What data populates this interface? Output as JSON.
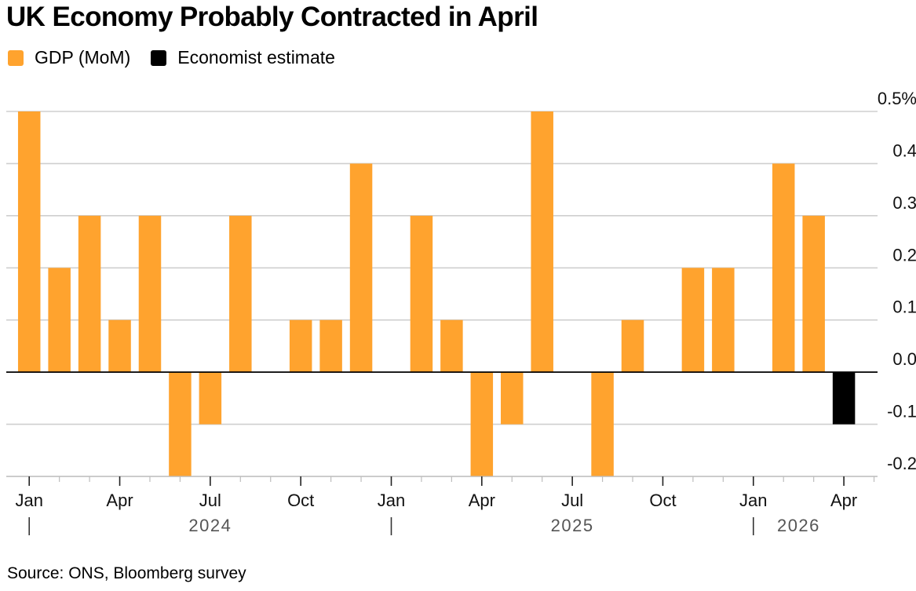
{
  "title": "UK Economy Probably Contracted in April",
  "legend": [
    {
      "label": "GDP (MoM)",
      "color": "#ffa32e"
    },
    {
      "label": "Economist estimate",
      "color": "#000000"
    }
  ],
  "source": "Source: ONS, Bloomberg survey",
  "chart_data": {
    "type": "bar",
    "categories": [
      "2024-01",
      "2024-02",
      "2024-03",
      "2024-04",
      "2024-05",
      "2024-06",
      "2024-07",
      "2024-08",
      "2024-09",
      "2024-10",
      "2024-11",
      "2024-12",
      "2025-01",
      "2025-02",
      "2025-03",
      "2025-04",
      "2025-05",
      "2025-06",
      "2025-07",
      "2025-08",
      "2025-09",
      "2025-10",
      "2025-11",
      "2025-12",
      "2026-01",
      "2026-02",
      "2026-03",
      "2026-04"
    ],
    "series": [
      {
        "name": "GDP (MoM)",
        "color": "#ffa32e",
        "values": [
          0.5,
          0.2,
          0.3,
          0.1,
          0.3,
          -0.2,
          -0.1,
          0.3,
          0,
          0.1,
          0.1,
          0.4,
          0,
          0.3,
          0.1,
          -0.2,
          -0.1,
          0.5,
          0,
          -0.2,
          0.1,
          0,
          0.2,
          0.2,
          0,
          0.4,
          0.3,
          null
        ]
      },
      {
        "name": "Economist estimate",
        "color": "#000000",
        "values": [
          null,
          null,
          null,
          null,
          null,
          null,
          null,
          null,
          null,
          null,
          null,
          null,
          null,
          null,
          null,
          null,
          null,
          null,
          null,
          null,
          null,
          null,
          null,
          null,
          null,
          null,
          null,
          -0.1
        ]
      }
    ],
    "yticks": [
      {
        "value": 0.5,
        "label": "0.5%"
      },
      {
        "value": 0.4,
        "label": "0.4"
      },
      {
        "value": 0.3,
        "label": "0.3"
      },
      {
        "value": 0.2,
        "label": "0.2"
      },
      {
        "value": 0.1,
        "label": "0.1"
      },
      {
        "value": 0.0,
        "label": "0.0"
      },
      {
        "value": -0.1,
        "label": "-0.1"
      },
      {
        "value": -0.2,
        "label": "-0.2"
      }
    ],
    "ylim": [
      -0.2,
      0.5
    ],
    "month_labels": [
      {
        "index": 0,
        "label": "Jan"
      },
      {
        "index": 3,
        "label": "Apr"
      },
      {
        "index": 6,
        "label": "Jul"
      },
      {
        "index": 9,
        "label": "Oct"
      },
      {
        "index": 12,
        "label": "Jan"
      },
      {
        "index": 15,
        "label": "Apr"
      },
      {
        "index": 18,
        "label": "Jul"
      },
      {
        "index": 21,
        "label": "Oct"
      },
      {
        "index": 24,
        "label": "Jan"
      },
      {
        "index": 27,
        "label": "Apr"
      }
    ],
    "year_labels": [
      {
        "start": 0,
        "label": "2024"
      },
      {
        "start": 12,
        "label": "2025"
      },
      {
        "start": 24,
        "label": "2026"
      }
    ],
    "grid": true,
    "y_axis_position": "right",
    "legend_position": "top-left"
  }
}
